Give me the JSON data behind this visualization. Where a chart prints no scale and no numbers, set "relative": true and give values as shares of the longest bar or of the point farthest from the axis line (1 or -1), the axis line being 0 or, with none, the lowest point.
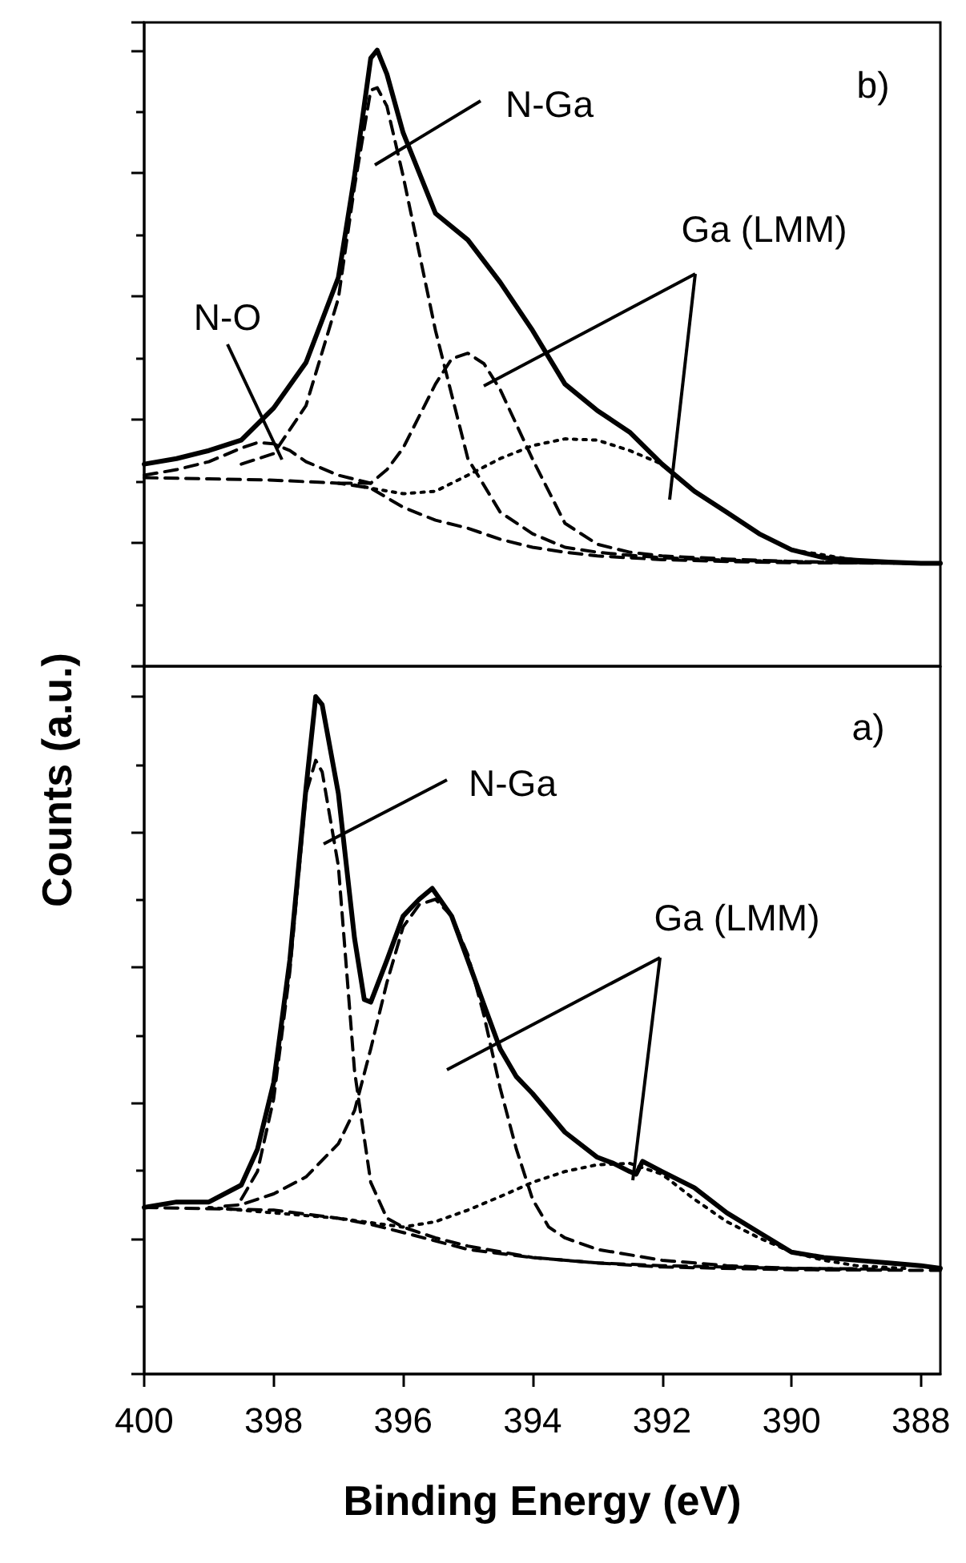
{
  "chart_data": [
    {
      "type": "line",
      "relative": true,
      "ylabel": "Counts (a.u.)",
      "xlim": [
        400,
        387.7
      ],
      "tick_labels": false,
      "annotations": [
        "b)",
        "N-Ga",
        "N-O",
        "Ga (LMM)"
      ],
      "series": [
        {
          "color": "#000000",
          "line_style": "solid",
          "x": [
            400,
            399.5,
            399,
            398.5,
            398,
            397.5,
            397,
            396.75,
            396.5,
            396.4,
            396.25,
            396,
            395.5,
            395,
            394.5,
            394,
            393.5,
            393,
            392.5,
            392,
            391.5,
            391,
            390.5,
            390,
            389.5,
            389,
            388.5,
            388,
            387.7
          ],
          "values": [
            0.328,
            0.337,
            0.35,
            0.367,
            0.419,
            0.493,
            0.631,
            0.796,
            0.987,
            1.0,
            0.961,
            0.866,
            0.735,
            0.692,
            0.623,
            0.545,
            0.458,
            0.415,
            0.38,
            0.328,
            0.284,
            0.25,
            0.215,
            0.189,
            0.176,
            0.172,
            0.169,
            0.167,
            0.167
          ]
        },
        {
          "color": "#000000",
          "line_style": "dashed",
          "x": [
            400,
            399.5,
            399,
            398.5,
            398.25,
            398,
            397.75,
            397.5,
            397,
            396.5
          ],
          "values": [
            0.31,
            0.319,
            0.332,
            0.354,
            0.363,
            0.361,
            0.35,
            0.332,
            0.31,
            0.297
          ]
        },
        {
          "color": "#000000",
          "line_style": "dashed",
          "x": [
            398.5,
            398,
            397.5,
            397,
            396.75,
            396.5,
            396.4,
            396.25,
            396,
            395.5,
            395,
            394.5,
            394,
            393.5,
            393,
            392.5,
            392,
            391,
            390,
            389,
            388
          ],
          "values": [
            0.328,
            0.345,
            0.423,
            0.597,
            0.779,
            0.935,
            0.939,
            0.909,
            0.796,
            0.545,
            0.337,
            0.25,
            0.215,
            0.193,
            0.185,
            0.18,
            0.176,
            0.172,
            0.17,
            0.168,
            0.167
          ]
        },
        {
          "color": "#000000",
          "line_style": "dashed",
          "x": [
            397,
            396.5,
            396.25,
            396,
            395.5,
            395.25,
            395,
            394.75,
            394.5,
            394,
            393.5,
            393,
            392.5,
            392,
            391,
            390,
            389
          ],
          "values": [
            0.297,
            0.297,
            0.319,
            0.354,
            0.458,
            0.499,
            0.508,
            0.491,
            0.449,
            0.336,
            0.232,
            0.198,
            0.185,
            0.179,
            0.174,
            0.17,
            0.168
          ]
        },
        {
          "color": "#000000",
          "line_style": "dotted",
          "x": [
            396.75,
            396.5,
            396,
            395.5,
            395,
            394.5,
            394,
            393.5,
            393,
            392.5,
            392,
            391.5,
            391,
            390.5,
            390,
            389,
            388.5
          ],
          "values": [
            0.294,
            0.289,
            0.28,
            0.284,
            0.31,
            0.337,
            0.358,
            0.369,
            0.367,
            0.35,
            0.328,
            0.284,
            0.25,
            0.215,
            0.189,
            0.172,
            0.169
          ]
        },
        {
          "color": "#000000",
          "line_style": "dashed",
          "x": [
            400,
            399,
            398,
            397,
            396.5,
            396,
            395.5,
            395,
            394.5,
            394,
            393.5,
            393,
            392,
            391,
            390,
            387.7
          ],
          "values": [
            0.306,
            0.304,
            0.302,
            0.297,
            0.289,
            0.258,
            0.237,
            0.224,
            0.206,
            0.193,
            0.185,
            0.179,
            0.173,
            0.17,
            0.168,
            0.167
          ]
        }
      ]
    },
    {
      "type": "line",
      "relative": true,
      "xlabel": "Binding Energy (eV)",
      "xlim": [
        400,
        387.7
      ],
      "xticks": [
        400,
        398,
        396,
        394,
        392,
        390,
        388
      ],
      "tick_labels": "x",
      "annotations": [
        "a)",
        "N-Ga",
        "Ga (LMM)"
      ],
      "series": [
        {
          "color": "#000000",
          "line_style": "solid",
          "x": [
            400,
            399.5,
            399,
            398.5,
            398.25,
            398,
            397.75,
            397.5,
            397.35,
            397.25,
            397,
            396.75,
            396.6,
            396.5,
            396.25,
            396,
            395.75,
            395.55,
            395.25,
            395,
            394.75,
            394.5,
            394.25,
            394,
            393.5,
            393,
            392.75,
            392.5,
            392.4,
            392.3,
            392,
            391.5,
            391,
            390.5,
            390,
            389.5,
            389,
            388.5,
            388,
            387.7
          ],
          "values": [
            0.246,
            0.254,
            0.254,
            0.279,
            0.332,
            0.43,
            0.611,
            0.865,
            1.0,
            0.988,
            0.857,
            0.643,
            0.553,
            0.549,
            0.611,
            0.676,
            0.701,
            0.717,
            0.676,
            0.611,
            0.545,
            0.48,
            0.439,
            0.414,
            0.357,
            0.32,
            0.311,
            0.299,
            0.295,
            0.314,
            0.299,
            0.275,
            0.238,
            0.209,
            0.18,
            0.172,
            0.168,
            0.164,
            0.16,
            0.156
          ]
        },
        {
          "color": "#000000",
          "line_style": "dashed",
          "x": [
            398.5,
            398.25,
            398,
            397.75,
            397.5,
            397.35,
            397.25,
            397,
            396.75,
            396.5,
            396.25,
            396,
            395.5,
            395,
            394,
            393,
            392,
            390,
            388.5
          ],
          "values": [
            0.258,
            0.299,
            0.406,
            0.594,
            0.857,
            0.906,
            0.889,
            0.75,
            0.447,
            0.283,
            0.23,
            0.217,
            0.201,
            0.189,
            0.172,
            0.164,
            0.16,
            0.156,
            0.155
          ]
        },
        {
          "color": "#000000",
          "line_style": "dashed",
          "x": [
            398.75,
            398.5,
            398,
            397.5,
            397,
            396.75,
            396.5,
            396.25,
            396,
            395.75,
            395.5,
            395.25,
            395,
            394.75,
            394.5,
            394.25,
            394,
            393.75,
            393.5,
            393,
            392,
            391,
            390,
            389
          ],
          "values": [
            0.248,
            0.25,
            0.266,
            0.291,
            0.34,
            0.389,
            0.48,
            0.578,
            0.66,
            0.693,
            0.701,
            0.676,
            0.619,
            0.529,
            0.422,
            0.332,
            0.258,
            0.217,
            0.201,
            0.184,
            0.168,
            0.16,
            0.156,
            0.155
          ]
        },
        {
          "color": "#000000",
          "line_style": "dotted",
          "x": [
            399,
            398,
            397,
            396,
            395.5,
            395,
            394.5,
            394,
            393.5,
            393,
            392.5,
            392,
            391.5,
            391,
            390.5,
            390,
            389.5,
            389,
            388.25
          ],
          "values": [
            0.246,
            0.238,
            0.23,
            0.217,
            0.225,
            0.242,
            0.262,
            0.283,
            0.299,
            0.309,
            0.311,
            0.295,
            0.258,
            0.225,
            0.201,
            0.18,
            0.168,
            0.16,
            0.156
          ]
        },
        {
          "color": "#000000",
          "line_style": "dashed",
          "x": [
            400,
            398,
            397,
            396.5,
            396,
            395,
            394,
            393,
            392,
            390,
            387.7
          ],
          "values": [
            0.246,
            0.242,
            0.23,
            0.221,
            0.209,
            0.184,
            0.172,
            0.164,
            0.158,
            0.154,
            0.153
          ]
        }
      ]
    }
  ]
}
